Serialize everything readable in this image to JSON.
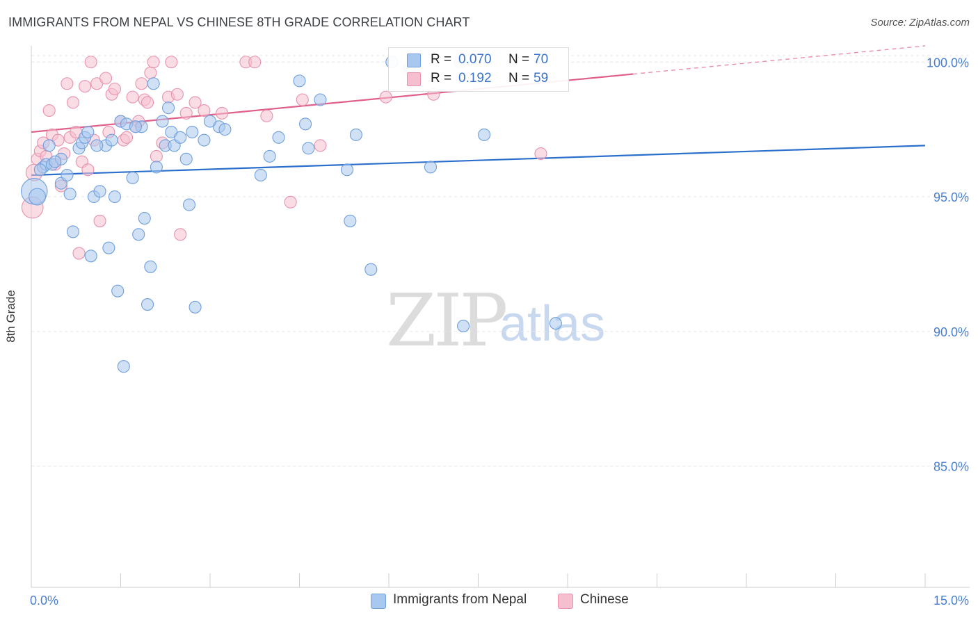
{
  "header": {
    "title": "IMMIGRANTS FROM NEPAL VS CHINESE 8TH GRADE CORRELATION CHART",
    "source": "Source: ZipAtlas.com"
  },
  "watermark": {
    "zip": "ZIP",
    "atlas": "atlas"
  },
  "legend": {
    "r_label": "R =",
    "n_label": "N =",
    "nepal": {
      "r": "0.070",
      "n": "70"
    },
    "chinese": {
      "r": "0.192",
      "n": "59"
    }
  },
  "colors": {
    "nepal_fill": "#a9c8ef",
    "nepal_stroke": "#6f9fdc",
    "nepal_line": "#2b6fcc",
    "chinese_fill": "#f6bfd0",
    "chinese_stroke": "#e892ad",
    "chinese_line": "#e0608a",
    "tick_text": "#4a7fd0"
  },
  "chart_data": {
    "type": "scatter",
    "title": "IMMIGRANTS FROM NEPAL VS CHINESE 8TH GRADE CORRELATION CHART",
    "xlabel": "",
    "ylabel": "8th Grade",
    "xlim": [
      0,
      15
    ],
    "ylim": [
      80.5,
      100.6
    ],
    "x_tick_labels": [
      "0.0%",
      "15.0%"
    ],
    "y_ticks": [
      {
        "value": 100,
        "label": "100.0%"
      },
      {
        "value": 95,
        "label": "95.0%"
      },
      {
        "value": 90,
        "label": "90.0%"
      },
      {
        "value": 85,
        "label": "85.0%"
      }
    ],
    "series": [
      {
        "name": "Immigrants from Nepal",
        "trend": {
          "x0": 0,
          "y0": 95.8,
          "x1": 15,
          "y1": 96.9,
          "dash_from": 15
        },
        "points": [
          [
            0.05,
            95.2,
            2.2
          ],
          [
            0.1,
            95.0,
            1.4
          ],
          [
            0.2,
            96.1,
            1
          ],
          [
            0.25,
            96.2,
            1
          ],
          [
            0.3,
            96.9,
            1
          ],
          [
            0.35,
            96.2,
            1
          ],
          [
            0.5,
            96.4,
            1
          ],
          [
            0.5,
            95.5,
            1
          ],
          [
            0.6,
            95.8,
            1
          ],
          [
            0.65,
            95.1,
            1
          ],
          [
            0.7,
            93.7,
            1
          ],
          [
            0.8,
            96.8,
            1
          ],
          [
            0.85,
            97.0,
            1
          ],
          [
            0.9,
            97.2,
            1
          ],
          [
            0.95,
            97.4,
            1
          ],
          [
            1.0,
            92.8,
            1
          ],
          [
            1.05,
            95.0,
            1
          ],
          [
            1.15,
            95.2,
            1
          ],
          [
            1.25,
            96.9,
            1
          ],
          [
            1.3,
            93.1,
            1
          ],
          [
            1.35,
            97.1,
            1
          ],
          [
            1.4,
            95.0,
            1
          ],
          [
            1.45,
            91.5,
            1
          ],
          [
            1.5,
            97.8,
            1
          ],
          [
            1.55,
            88.7,
            1
          ],
          [
            1.6,
            97.7,
            1
          ],
          [
            1.7,
            95.7,
            1
          ],
          [
            1.8,
            93.6,
            1
          ],
          [
            1.85,
            97.6,
            1
          ],
          [
            1.9,
            94.2,
            1
          ],
          [
            1.95,
            91.0,
            1
          ],
          [
            2.0,
            92.4,
            1
          ],
          [
            2.05,
            99.2,
            1
          ],
          [
            2.1,
            96.1,
            1
          ],
          [
            2.2,
            97.8,
            1
          ],
          [
            2.25,
            96.9,
            1
          ],
          [
            2.3,
            98.3,
            1
          ],
          [
            2.35,
            97.4,
            1
          ],
          [
            2.4,
            96.9,
            1
          ],
          [
            2.5,
            97.2,
            1
          ],
          [
            2.6,
            96.4,
            1
          ],
          [
            2.65,
            94.7,
            1
          ],
          [
            2.7,
            97.4,
            1
          ],
          [
            2.75,
            90.9,
            1
          ],
          [
            2.9,
            97.1,
            1
          ],
          [
            3.15,
            97.6,
            1
          ],
          [
            3.25,
            97.5,
            1
          ],
          [
            3.85,
            95.8,
            1
          ],
          [
            4.0,
            96.5,
            1
          ],
          [
            4.15,
            97.2,
            1
          ],
          [
            4.5,
            99.3,
            1
          ],
          [
            4.6,
            97.7,
            1
          ],
          [
            4.65,
            96.8,
            1
          ],
          [
            4.85,
            98.6,
            1
          ],
          [
            5.3,
            96.0,
            1
          ],
          [
            5.35,
            94.1,
            1
          ],
          [
            5.45,
            97.3,
            1
          ],
          [
            5.7,
            92.3,
            1
          ],
          [
            6.05,
            100.0,
            1
          ],
          [
            6.35,
            99.8,
            1
          ],
          [
            6.7,
            96.1,
            1
          ],
          [
            7.2,
            100.0,
            1
          ],
          [
            7.25,
            90.2,
            1
          ],
          [
            7.6,
            97.3,
            1
          ],
          [
            8.8,
            90.3,
            1
          ],
          [
            0.15,
            96.0,
            1
          ],
          [
            1.1,
            96.9,
            1
          ],
          [
            1.75,
            97.6,
            1
          ],
          [
            3.0,
            97.8,
            1
          ],
          [
            0.4,
            96.3,
            1
          ]
        ]
      },
      {
        "name": "Chinese",
        "trend": {
          "x0": 0,
          "y0": 97.4,
          "x1": 15,
          "y1": 100.6,
          "dash_from": 10.1
        },
        "points": [
          [
            0.02,
            94.6,
            1.8
          ],
          [
            0.05,
            95.9,
            1.4
          ],
          [
            0.1,
            96.4,
            1
          ],
          [
            0.15,
            96.7,
            1
          ],
          [
            0.2,
            97.0,
            1
          ],
          [
            0.25,
            96.5,
            1
          ],
          [
            0.3,
            98.2,
            1
          ],
          [
            0.35,
            97.3,
            1
          ],
          [
            0.4,
            96.2,
            1
          ],
          [
            0.45,
            97.1,
            1
          ],
          [
            0.5,
            95.4,
            1
          ],
          [
            0.55,
            96.6,
            1
          ],
          [
            0.6,
            99.2,
            1
          ],
          [
            0.65,
            97.2,
            1
          ],
          [
            0.7,
            98.5,
            1
          ],
          [
            0.75,
            97.4,
            1
          ],
          [
            0.8,
            92.9,
            1
          ],
          [
            0.85,
            96.3,
            1
          ],
          [
            0.9,
            99.1,
            1
          ],
          [
            0.95,
            96.0,
            1
          ],
          [
            1.0,
            100.0,
            1
          ],
          [
            1.05,
            97.1,
            1
          ],
          [
            1.1,
            99.2,
            1
          ],
          [
            1.15,
            94.1,
            1
          ],
          [
            1.25,
            99.4,
            1
          ],
          [
            1.3,
            97.4,
            1
          ],
          [
            1.35,
            98.8,
            1
          ],
          [
            1.4,
            99.0,
            1
          ],
          [
            1.5,
            97.8,
            1
          ],
          [
            1.55,
            97.1,
            1
          ],
          [
            1.6,
            97.2,
            1
          ],
          [
            1.7,
            98.7,
            1
          ],
          [
            1.75,
            97.6,
            1
          ],
          [
            1.8,
            97.8,
            1
          ],
          [
            1.85,
            99.2,
            1
          ],
          [
            1.9,
            98.6,
            1
          ],
          [
            1.95,
            98.5,
            1
          ],
          [
            2.0,
            99.6,
            1
          ],
          [
            2.05,
            100.0,
            1
          ],
          [
            2.1,
            96.5,
            1
          ],
          [
            2.2,
            97.0,
            1
          ],
          [
            2.3,
            98.7,
            1
          ],
          [
            2.35,
            100.0,
            1
          ],
          [
            2.45,
            98.8,
            1
          ],
          [
            2.5,
            93.6,
            1
          ],
          [
            2.6,
            98.1,
            1
          ],
          [
            2.75,
            98.5,
            1
          ],
          [
            2.9,
            98.2,
            1
          ],
          [
            3.2,
            98.1,
            1
          ],
          [
            3.6,
            100.0,
            1
          ],
          [
            3.75,
            100.0,
            1
          ],
          [
            3.95,
            98.0,
            1
          ],
          [
            4.35,
            94.8,
            1
          ],
          [
            4.55,
            98.6,
            1
          ],
          [
            4.85,
            96.9,
            1
          ],
          [
            5.95,
            98.7,
            1
          ],
          [
            6.35,
            99.7,
            1
          ],
          [
            6.75,
            98.8,
            1
          ],
          [
            8.55,
            96.6,
            1
          ]
        ]
      }
    ]
  },
  "bottom_legend": {
    "nepal": "Immigrants from Nepal",
    "chinese": "Chinese"
  }
}
